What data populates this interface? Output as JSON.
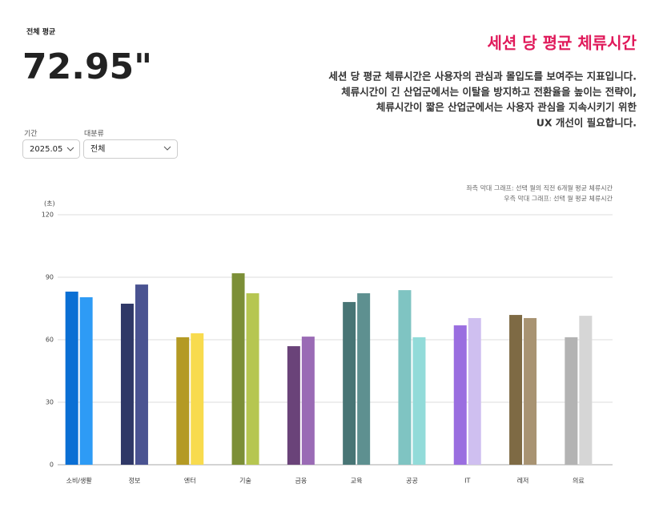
{
  "header": {
    "avg_label": "전체 평균",
    "avg_value": "72.95\"",
    "title": "세션 당 평균 체류시간",
    "description": [
      "세션 당 평균 체류시간은 사용자의 관심과 몰입도를 보여주는 지표입니다.",
      "체류시간이 긴 산업군에서는 이탈을 방지하고 전환율을 높이는 전략이,",
      "체류시간이 짧은 산업군에서는 사용자 관심을 지속시키기 위한",
      "UX 개선이 필요합니다."
    ]
  },
  "filters": [
    {
      "label": "기간",
      "value": "2025.05"
    },
    {
      "label": "대분류",
      "value": "전체"
    }
  ],
  "chart_data": {
    "type": "bar",
    "notes": [
      "좌측 막대 그래프: 선택 월의 직전 6개월 평균 체류시간",
      "우측 막대 그래프: 선택 월 평균 체류시간"
    ],
    "y_label": "(초)",
    "categories": [
      "소비/생활",
      "정보",
      "엔터",
      "기술",
      "금융",
      "교육",
      "공공",
      "IT",
      "레저",
      "의료"
    ],
    "series": [
      {
        "values": [
          83.1,
          77.3,
          61.2,
          91.9,
          56.9,
          78.1,
          83.8,
          66.9,
          71.9,
          61.2
        ],
        "colors": [
          "#0a6fd4",
          "#2f3867",
          "#b49a24",
          "#7c8f37",
          "#6a4379",
          "#487575",
          "#7fc4c2",
          "#9a6ee0",
          "#7e6a44",
          "#b3b3b3"
        ]
      },
      {
        "values": [
          80.4,
          86.5,
          63.1,
          82.3,
          61.5,
          82.3,
          61.2,
          70.4,
          70.4,
          71.5
        ],
        "colors": [
          "#2e9bf5",
          "#4a5391",
          "#f8db4e",
          "#b6c651",
          "#9a6bb5",
          "#5e9090",
          "#92dbd9",
          "#cfbff0",
          "#a89372",
          "#d6d6d6"
        ]
      }
    ],
    "ylim": [
      0,
      120
    ],
    "yticks": [
      0,
      30,
      60,
      90,
      120
    ],
    "grid": true
  }
}
